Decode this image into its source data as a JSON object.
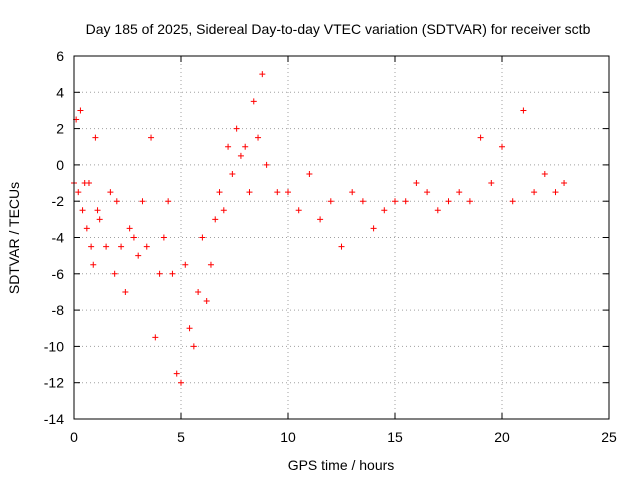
{
  "chart_data": {
    "type": "scatter",
    "title": "Day 185 of 2025, Sidereal Day-to-day VTEC variation (SDTVAR) for receiver sctb",
    "xlabel": "GPS time / hours",
    "ylabel": "SDTVAR / TECUs",
    "xlim": [
      0,
      25
    ],
    "ylim": [
      -14,
      6
    ],
    "x_ticks": [
      0,
      5,
      10,
      15,
      20,
      25
    ],
    "y_ticks": [
      -14,
      -12,
      -10,
      -8,
      -6,
      -4,
      -2,
      0,
      2,
      4,
      6
    ],
    "x_tick_labels": [
      "0",
      "5",
      "10",
      "15",
      "20",
      "25"
    ],
    "y_tick_labels": [
      "-14",
      "-12",
      "-10",
      "-8",
      "-6",
      "-4",
      "-2",
      "0",
      "2",
      "4",
      "6"
    ],
    "grid": true,
    "marker": "+",
    "marker_color": "#ff0000",
    "series": [
      {
        "name": "sctb",
        "note": "dense scatter of + markers; values approximate the visible trend",
        "x": [
          0.0,
          0.1,
          0.2,
          0.3,
          0.4,
          0.5,
          0.6,
          0.7,
          0.8,
          0.9,
          1.0,
          1.1,
          1.2,
          1.5,
          1.7,
          1.9,
          2.0,
          2.2,
          2.4,
          2.6,
          2.8,
          3.0,
          3.2,
          3.4,
          3.6,
          3.8,
          4.0,
          4.2,
          4.4,
          4.6,
          4.8,
          5.0,
          5.2,
          5.4,
          5.6,
          5.8,
          6.0,
          6.2,
          6.4,
          6.6,
          6.8,
          7.0,
          7.2,
          7.4,
          7.6,
          7.8,
          8.0,
          8.2,
          8.4,
          8.6,
          8.8,
          9.0,
          9.5,
          10.0,
          10.5,
          11.0,
          11.5,
          12.0,
          12.5,
          13.0,
          13.5,
          14.0,
          14.5,
          15.0,
          15.5,
          16.0,
          16.5,
          17.0,
          17.5,
          18.0,
          18.5,
          19.0,
          19.5,
          20.0,
          20.5,
          21.0,
          21.5,
          22.0,
          22.5,
          22.9
        ],
        "y": [
          -1.0,
          2.5,
          -1.5,
          3.0,
          -2.5,
          -1.0,
          -3.5,
          -1.0,
          -4.5,
          -5.5,
          1.5,
          -2.5,
          -3.0,
          -4.5,
          -1.5,
          -6.0,
          -2.0,
          -4.5,
          -7.0,
          -3.5,
          -4.0,
          -5.0,
          -2.0,
          -4.5,
          1.5,
          -9.5,
          -6.0,
          -4.0,
          -2.0,
          -6.0,
          -11.5,
          -12.0,
          -5.5,
          -9.0,
          -10.0,
          -7.0,
          -4.0,
          -7.5,
          -5.5,
          -3.0,
          -1.5,
          -2.5,
          1.0,
          -0.5,
          2.0,
          0.5,
          1.0,
          -1.5,
          3.5,
          1.5,
          5.0,
          0.0,
          -1.5,
          -1.5,
          -2.5,
          -0.5,
          -3.0,
          -2.0,
          -4.5,
          -1.5,
          -2.0,
          -3.5,
          -2.5,
          -2.0,
          -2.0,
          -1.0,
          -1.5,
          -2.5,
          -2.0,
          -1.5,
          -2.0,
          1.5,
          -1.0,
          1.0,
          -2.0,
          3.0,
          -1.5,
          -0.5,
          -1.5,
          -1.0
        ]
      }
    ]
  }
}
